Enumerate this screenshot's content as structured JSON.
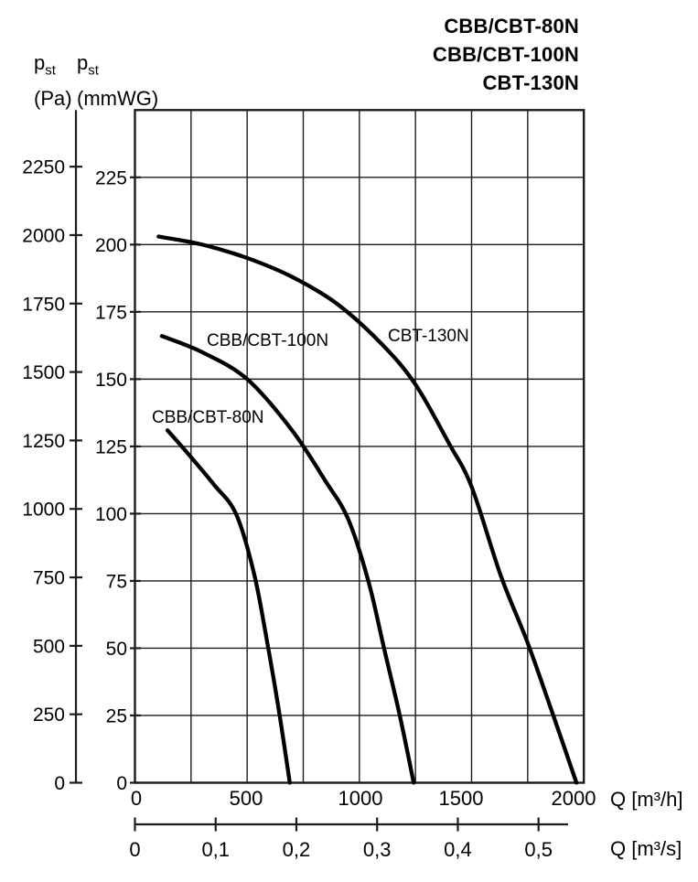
{
  "title": {
    "lines": [
      "CBB/CBT-80N",
      "CBB/CBT-100N",
      "CBT-130N"
    ]
  },
  "axis_headers": {
    "pa": {
      "symbol": "p",
      "subscript": "st",
      "unit": "(Pa)"
    },
    "mmwg": {
      "symbol": "p",
      "subscript": "st",
      "unit": "(mmWG)"
    }
  },
  "x_axis": {
    "unit_label": "Q [m³/h]",
    "tick_labels": [
      0,
      500,
      1000,
      1500,
      2000
    ],
    "range_m3h": [
      0,
      2000
    ],
    "grid_step_m3h": 250
  },
  "x_axis_secondary": {
    "unit_label": "Q [m³/s]",
    "tick_labels": [
      "0",
      "0,1",
      "0,2",
      "0,3",
      "0,4",
      "0,5"
    ],
    "tick_values_m3s": [
      0,
      0.1,
      0.2,
      0.3,
      0.4,
      0.5
    ]
  },
  "y_axis_pa": {
    "tick_labels": [
      0,
      250,
      500,
      750,
      1000,
      1250,
      1500,
      1750,
      2000,
      2250
    ]
  },
  "y_axis_mmwg": {
    "tick_labels": [
      0,
      25,
      50,
      75,
      100,
      125,
      150,
      175,
      200,
      225
    ],
    "range_mmwg": [
      0,
      250
    ],
    "grid_step_mmwg": 25
  },
  "chart_data": {
    "type": "line",
    "title": "CBB/CBT-80N, CBB/CBT-100N, CBT-130N",
    "xlabel": "Q [m³/h]",
    "x2label": "Q [m³/s]",
    "ylabel_left": "p_st (Pa)",
    "ylabel_right": "p_st (mmWG)",
    "x_range_m3h": [
      0,
      2000
    ],
    "y_range_mmwg": [
      0,
      250
    ],
    "y_range_pa": [
      0,
      2250
    ],
    "grid": true,
    "series": [
      {
        "name": "CBB/CBT-80N",
        "points_q_m3h_p_mmwg": [
          [
            145,
            131
          ],
          [
            250,
            121
          ],
          [
            350,
            111
          ],
          [
            450,
            100
          ],
          [
            530,
            78
          ],
          [
            590,
            52
          ],
          [
            645,
            25
          ],
          [
            690,
            0
          ]
        ]
      },
      {
        "name": "CBB/CBT-100N",
        "points_q_m3h_p_mmwg": [
          [
            120,
            166
          ],
          [
            300,
            160
          ],
          [
            500,
            150
          ],
          [
            700,
            131
          ],
          [
            850,
            112
          ],
          [
            950,
            98
          ],
          [
            1040,
            75
          ],
          [
            1110,
            50
          ],
          [
            1180,
            25
          ],
          [
            1242,
            0
          ]
        ]
      },
      {
        "name": "CBT-130N",
        "points_q_m3h_p_mmwg": [
          [
            105,
            203
          ],
          [
            300,
            200
          ],
          [
            500,
            195
          ],
          [
            700,
            188
          ],
          [
            900,
            178
          ],
          [
            1100,
            163
          ],
          [
            1250,
            148
          ],
          [
            1400,
            126
          ],
          [
            1500,
            110
          ],
          [
            1630,
            77
          ],
          [
            1750,
            52
          ],
          [
            1860,
            26
          ],
          [
            1967,
            0
          ]
        ]
      }
    ]
  },
  "colors": {
    "ink": "#000000",
    "grid": "#1c1c1c",
    "curve": "#000000",
    "background": "#ffffff"
  }
}
